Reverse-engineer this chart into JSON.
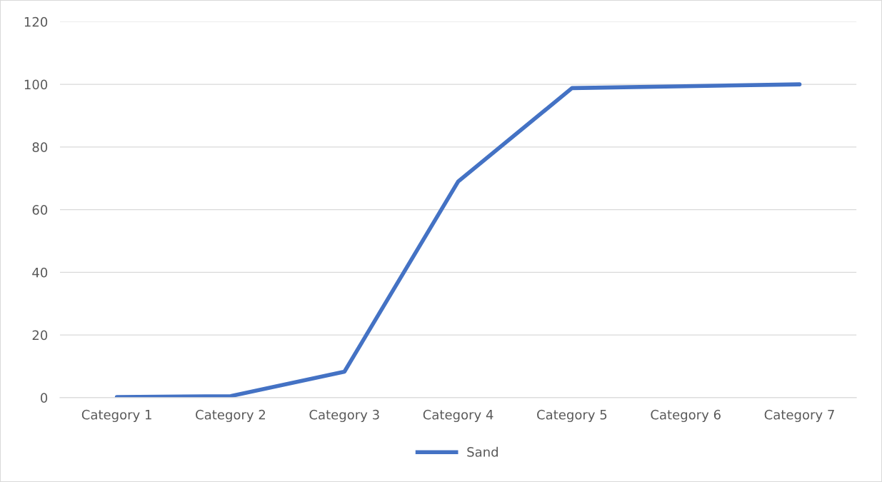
{
  "chart_data": {
    "type": "line",
    "categories": [
      "Category 1",
      "Category 2",
      "Category 3",
      "Category 4",
      "Category 5",
      "Category 6",
      "Category 7"
    ],
    "series": [
      {
        "name": "Sand",
        "color": "#4472c4",
        "values": [
          0.2,
          0.5,
          8.3,
          69,
          98.8,
          99.4,
          100
        ]
      }
    ],
    "ylim": [
      0,
      120
    ],
    "yticks": [
      0,
      20,
      40,
      60,
      80,
      100,
      120
    ],
    "grid": "y",
    "legend": "bottom",
    "marker": "none",
    "line_style": "solid"
  }
}
